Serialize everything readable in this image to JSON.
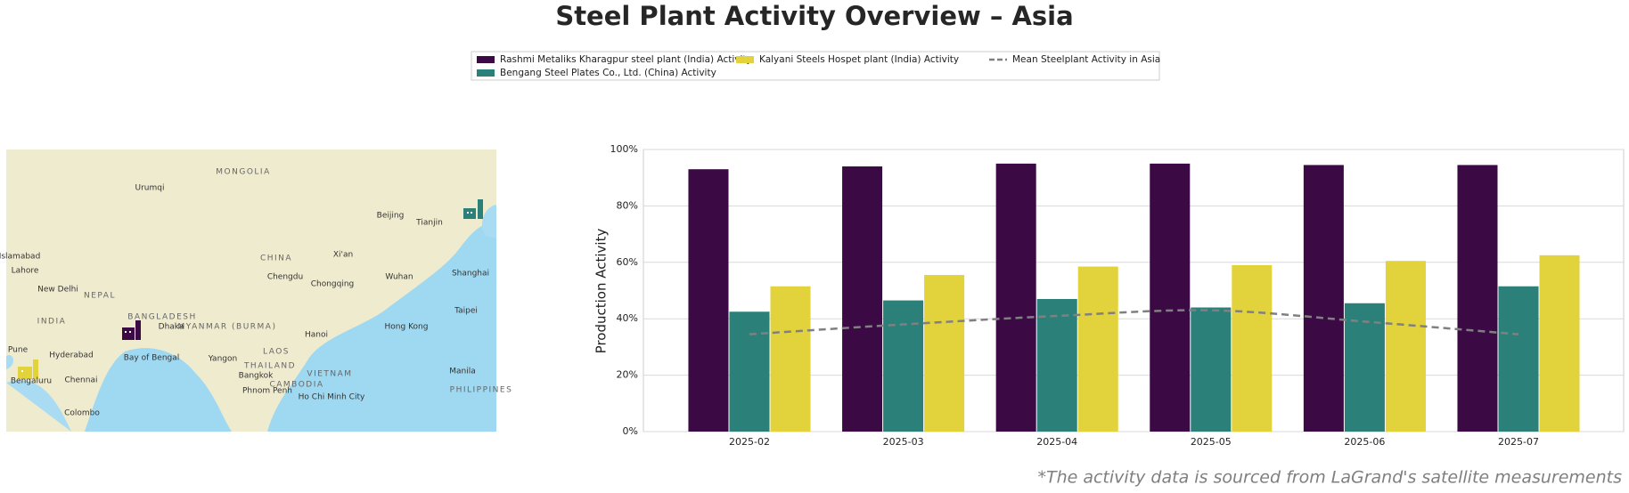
{
  "chart_data": {
    "type": "bar",
    "title": "Steel Plant Activity Overview – Asia",
    "ylabel": "Production Activity",
    "footnote": "*The activity data is sourced from LaGrand's satellite measurements",
    "categories": [
      "2025-02",
      "2025-03",
      "2025-04",
      "2025-05",
      "2025-06",
      "2025-07"
    ],
    "series": [
      {
        "name": "Rashmi Metaliks Kharagpur steel plant (India) Activity",
        "color": "#3b0a45",
        "values": [
          93,
          94,
          95,
          95,
          94.5,
          94.5
        ]
      },
      {
        "name": "Bengang Steel Plates Co., Ltd. (China) Activity",
        "color": "#2b8079",
        "values": [
          42.5,
          46.5,
          47,
          44,
          45.5,
          51.5
        ]
      },
      {
        "name": "Kalyani Steels Hospet plant (India) Activity",
        "color": "#e2d23b",
        "values": [
          51.5,
          55.5,
          58.5,
          59,
          60.5,
          62.5
        ]
      },
      {
        "name": "Mean Steelplant Activity in Asia",
        "color": "#808080",
        "type": "line",
        "dashed": true,
        "values": [
          34.5,
          38,
          41,
          43,
          39,
          34.5
        ]
      }
    ],
    "ylim": [
      0,
      100
    ],
    "yticks": [
      {
        "value": 0,
        "label": "0%"
      },
      {
        "value": 20,
        "label": "20%"
      },
      {
        "value": 40,
        "label": "40%"
      },
      {
        "value": 60,
        "label": "60%"
      },
      {
        "value": 80,
        "label": "80%"
      },
      {
        "value": 100,
        "label": "100%"
      }
    ],
    "grid": true,
    "legend": "top",
    "map": {
      "labels": [
        "MONGOLIA",
        "CHINA",
        "Urumqi",
        "Beijing",
        "Tianjin",
        "Xi'an",
        "Chengdu",
        "Chongqing",
        "Wuhan",
        "Shanghai",
        "Taipei",
        "Hong Kong",
        "Hanoi",
        "LAOS",
        "THAILAND",
        "VIETNAM",
        "CAMBODIA",
        "Bangkok",
        "Phnom Penh",
        "Ho Chi Minh City",
        "Yangon",
        "MYANMAR (BURMA)",
        "BANGLADESH",
        "Dhaka",
        "INDIA",
        "NEPAL",
        "New Delhi",
        "Lahore",
        "Islamabad",
        "Hyderabad",
        "Pune",
        "Chennai",
        "Bengaluru",
        "Colombo",
        "Bay of Bengal",
        "Manila",
        "PHILIPPINES"
      ]
    }
  }
}
